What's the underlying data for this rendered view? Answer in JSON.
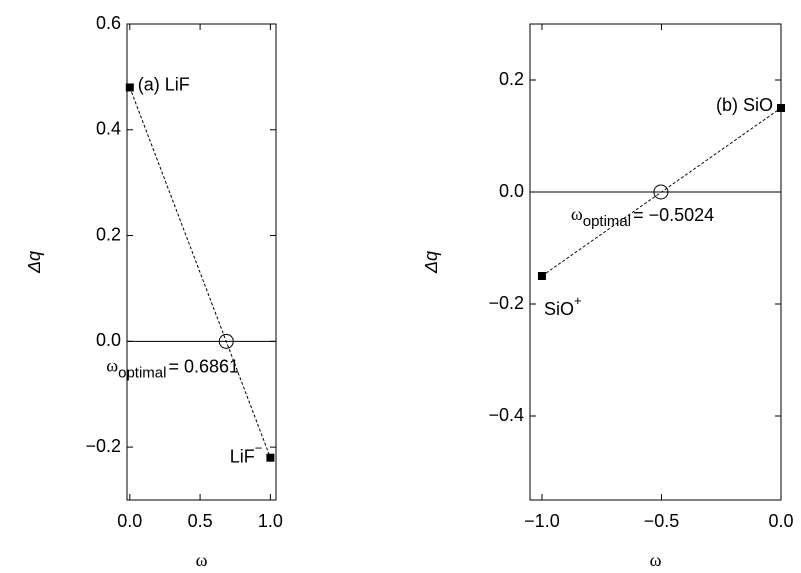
{
  "chart_data": [
    {
      "type": "line",
      "xlabel": "ω",
      "ylabel": "Δq",
      "x": [
        0,
        1
      ],
      "values": [
        0.48,
        -0.22
      ],
      "color": "#000000",
      "point_labels": [
        {
          "text": "(a) LiF"
        },
        {
          "text": "LiF",
          "sup": "−"
        }
      ],
      "optimal": {
        "x": 0.6861,
        "y": 0,
        "symbol": "ω",
        "subscript": "optimal",
        "label": "= 0.6861"
      },
      "xlim": [
        -0.02,
        1.04
      ],
      "ylim": [
        -0.3,
        0.6
      ],
      "xticks": [
        {
          "value": 0,
          "label": "0.0"
        },
        {
          "value": 0.5,
          "label": "0.5"
        },
        {
          "value": 1,
          "label": "1.0"
        }
      ],
      "yticks": [
        {
          "value": -0.2,
          "label": "−0.2"
        },
        {
          "value": 0,
          "label": "0.0"
        },
        {
          "value": 0.2,
          "label": "0.2"
        },
        {
          "value": 0.4,
          "label": "0.4"
        },
        {
          "value": 0.6,
          "label": "0.6"
        }
      ]
    },
    {
      "type": "line",
      "xlabel": "ω",
      "ylabel": "Δq",
      "x": [
        -1,
        0
      ],
      "values": [
        -0.15,
        0.15
      ],
      "color": "#000000",
      "point_labels": [
        {
          "text": "SiO",
          "sup": "+"
        },
        {
          "text": "(b) SiO"
        }
      ],
      "optimal": {
        "x": -0.5024,
        "y": 0,
        "symbol": "ω",
        "subscript": "optimal",
        "label": "= −0.5024"
      },
      "xlim": [
        -1.05,
        0.0
      ],
      "ylim": [
        -0.55,
        0.3
      ],
      "xticks": [
        {
          "value": -1,
          "label": "−1.0"
        },
        {
          "value": -0.5,
          "label": "−0.5"
        },
        {
          "value": 0,
          "label": "0.0"
        }
      ],
      "yticks": [
        {
          "value": -0.4,
          "label": "−0.4"
        },
        {
          "value": -0.2,
          "label": "−0.2"
        },
        {
          "value": 0,
          "label": "0.0"
        },
        {
          "value": 0.2,
          "label": "0.2"
        }
      ]
    }
  ]
}
